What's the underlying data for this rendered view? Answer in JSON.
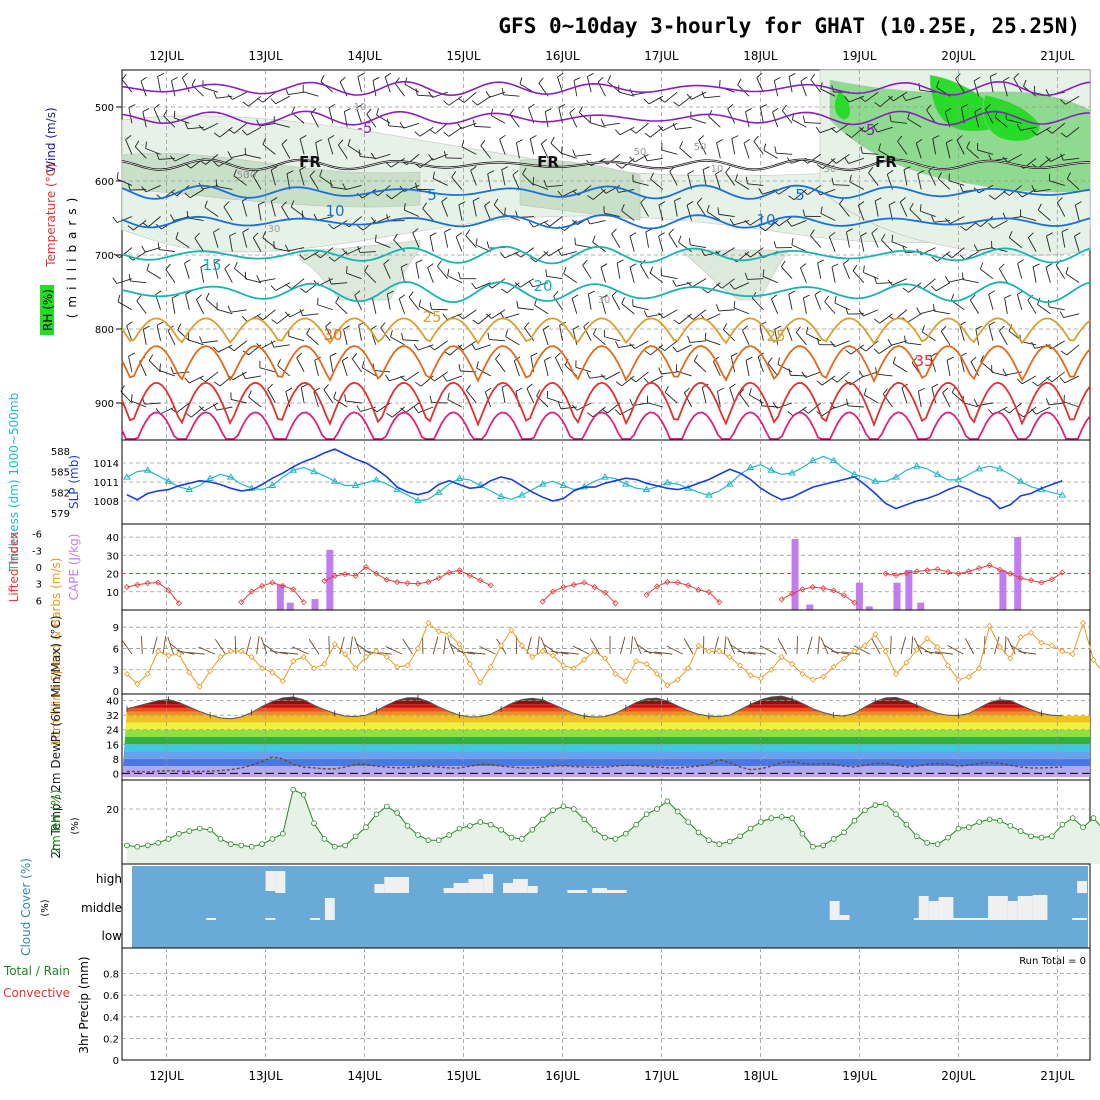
{
  "title": "GFS 0~10day 3-hourly for GHAT (10.25E, 25.25N)",
  "time_axis": {
    "day_labels": [
      "12JUL",
      "13JUL",
      "14JUL",
      "15JUL",
      "16JUL",
      "17JUL",
      "18JUL",
      "19JUL",
      "20JUL",
      "21JUL"
    ]
  },
  "colors": {
    "temp_neg": "#8a1fbf",
    "temp_freezing": "#111111",
    "temp_cool": "#1a6fd8",
    "temp_mild": "#19b3b3",
    "temp_warm": "#d7a030",
    "temp_hot": "#e06a1a",
    "temp_very_hot": "#e03030",
    "rh_green": "#22dd22",
    "slp_line": "#1a3fd8",
    "thickness_line": "#22b8c8",
    "lifted_index": "#e04040",
    "cape_bar": "#c07cf0",
    "wind_speed": "#e89a20",
    "rh2m": "#228822",
    "cloud_bg": "#6aaad8",
    "cloud_fill": "#f0f0f0"
  },
  "chart_data": [
    {
      "panel": "upper_air_cross_section",
      "type": "heatmap",
      "ylabel": "(millibars)",
      "side_labels": [
        "Wind (m/s)",
        "Temperature (°C)",
        "RH (%)"
      ],
      "y_ticks": [
        "500",
        "600",
        "700",
        "800",
        "900"
      ],
      "ylim": [
        950,
        450
      ],
      "isotherm_labels": [
        {
          "text": "-5",
          "group": "temp_neg"
        },
        {
          "text": "-5",
          "group": "temp_neg"
        },
        {
          "text": "FR",
          "group": "temp_freezing"
        },
        {
          "text": "FR",
          "group": "temp_freezing"
        },
        {
          "text": "FR",
          "group": "temp_freezing"
        },
        {
          "text": "5",
          "group": "temp_cool"
        },
        {
          "text": "5",
          "group": "temp_cool"
        },
        {
          "text": "10",
          "group": "temp_cool"
        },
        {
          "text": "10",
          "group": "temp_cool"
        },
        {
          "text": "15",
          "group": "temp_mild"
        },
        {
          "text": "20",
          "group": "temp_mild"
        },
        {
          "text": "25",
          "group": "temp_warm"
        },
        {
          "text": "25",
          "group": "temp_warm"
        },
        {
          "text": "30",
          "group": "temp_hot"
        },
        {
          "text": "35",
          "group": "temp_very_hot"
        }
      ],
      "rh_contour_labels": [
        "10",
        "30",
        "30",
        "30",
        "50",
        "50",
        "10",
        "30",
        "50"
      ]
    },
    {
      "panel": "slp_thickness",
      "type": "line",
      "ylabel_left": "Thickness (dm) 1000~500mb",
      "ylabel_right": "SLP (mb)",
      "thickness_ticks": [
        "588",
        "585",
        "582",
        "579"
      ],
      "slp_ticks": [
        "1014",
        "1011",
        "1008"
      ],
      "slp_ylim": [
        1005,
        1017
      ],
      "series": [
        {
          "name": "SLP (mb)",
          "color_key": "slp_line",
          "values": [
            1009.0,
            1008.2,
            1009.2,
            1009.6,
            1009.8,
            1010.4,
            1010.8,
            1011.2,
            1011.0,
            1010.6,
            1010.0,
            1009.6,
            1009.8,
            1010.6,
            1011.6,
            1012.4,
            1013.4,
            1014.2,
            1014.8,
            1015.6,
            1016.2,
            1015.4,
            1014.6,
            1014.0,
            1013.0,
            1011.8,
            1010.2,
            1009.4,
            1009.0,
            1009.4,
            1010.6,
            1011.2,
            1010.6,
            1010.0,
            1010.2,
            1011.2,
            1011.8,
            1011.4,
            1010.4,
            1009.4,
            1008.6,
            1008.0,
            1008.4,
            1009.6,
            1010.2,
            1010.2,
            1010.8,
            1011.2,
            1011.6,
            1011.4,
            1010.8,
            1010.4,
            1010.0,
            1009.8,
            1010.2,
            1010.8,
            1011.4,
            1012.2,
            1013.0,
            1012.4,
            1011.4,
            1010.0,
            1009.0,
            1008.2,
            1008.6,
            1009.4,
            1010.2,
            1010.6,
            1011.0,
            1011.4,
            1011.8,
            1010.6,
            1009.2,
            1007.6,
            1006.8,
            1007.4,
            1008.0,
            1008.4,
            1009.0,
            1009.8,
            1010.4,
            1009.8,
            1009.0,
            1008.4,
            1006.8,
            1007.4,
            1008.8,
            1009.2,
            1010.0,
            1010.6,
            1011.2
          ]
        },
        {
          "name": "Thickness (dm)",
          "color_key": "thickness_line",
          "values": [
            584.2,
            585.0,
            585.2,
            584.4,
            583.6,
            582.8,
            582.4,
            583.0,
            584.0,
            584.6,
            584.2,
            583.2,
            582.6,
            582.4,
            583.0,
            584.2,
            585.2,
            585.6,
            585.0,
            584.4,
            583.6,
            583.0,
            583.0,
            583.4,
            583.8,
            583.2,
            582.4,
            581.6,
            580.8,
            581.0,
            582.0,
            583.2,
            584.0,
            583.8,
            583.0,
            582.2,
            581.4,
            581.0,
            581.6,
            582.4,
            583.2,
            583.6,
            583.0,
            582.4,
            582.8,
            583.6,
            584.2,
            584.0,
            583.2,
            582.6,
            582.4,
            582.8,
            583.4,
            583.2,
            582.6,
            582.0,
            581.6,
            582.2,
            583.2,
            584.6,
            585.6,
            586.0,
            585.2,
            584.6,
            584.8,
            585.6,
            586.6,
            587.2,
            586.6,
            585.4,
            584.6,
            584.2,
            583.6,
            583.6,
            584.2,
            585.2,
            585.8,
            585.4,
            584.6,
            583.8,
            583.8,
            584.6,
            585.4,
            585.8,
            585.4,
            584.6,
            583.6,
            582.8,
            582.4,
            582.0,
            581.6
          ]
        }
      ]
    },
    {
      "panel": "lifted_index_cape",
      "type": "bar",
      "ylabel_left": "Lifted Index",
      "ylabel_right": "CAPE (J/kg)",
      "li_ticks": [
        "-6",
        "-3",
        "0",
        "3",
        "6"
      ],
      "cape_ticks": [
        "40",
        "30",
        "20",
        "10"
      ],
      "cape_ylim": [
        0,
        45
      ],
      "series": [
        {
          "name": "Lifted Index",
          "color_key": "lifted_index",
          "values": [
            3.6,
            3.2,
            2.9,
            2.8,
            4.2,
            6.5,
            null,
            null,
            null,
            null,
            null,
            6.3,
            4.4,
            3.4,
            2.8,
            3.4,
            4.0,
            6.3,
            null,
            2.5,
            1.6,
            1.3,
            1.6,
            0.0,
            1.2,
            2.3,
            2.7,
            2.9,
            3.0,
            2.7,
            2.0,
            1.0,
            0.6,
            1.5,
            2.4,
            3.3,
            null,
            null,
            null,
            null,
            6.2,
            4.4,
            3.6,
            3.2,
            2.8,
            3.6,
            4.6,
            6.5,
            null,
            null,
            5.0,
            3.5,
            2.7,
            2.8,
            3.3,
            4.1,
            4.5,
            6.3,
            null,
            null,
            null,
            null,
            null,
            5.8,
            4.8,
            4.0,
            3.6,
            3.8,
            4.2,
            5.1,
            6.4,
            null,
            null,
            1.2,
            1.5,
            1.1,
            0.8,
            0.6,
            0.4,
            0.9,
            1.2,
            0.8,
            0.2,
            -0.3,
            0.5,
            1.2,
            2.0,
            2.4,
            2.8,
            2.2,
            1.0
          ]
        },
        {
          "name": "CAPE (J/kg)",
          "color_key": "cape_bar",
          "bars": [
            {
              "day": 13.15,
              "value": 14
            },
            {
              "day": 13.25,
              "value": 4
            },
            {
              "day": 13.5,
              "value": 6
            },
            {
              "day": 13.65,
              "value": 33
            },
            {
              "day": 18.35,
              "value": 39
            },
            {
              "day": 18.5,
              "value": 3
            },
            {
              "day": 19.0,
              "value": 15
            },
            {
              "day": 19.1,
              "value": 2
            },
            {
              "day": 19.38,
              "value": 15
            },
            {
              "day": 19.5,
              "value": 22
            },
            {
              "day": 19.62,
              "value": 4
            },
            {
              "day": 20.45,
              "value": 22
            },
            {
              "day": 20.6,
              "value": 40
            }
          ]
        }
      ]
    },
    {
      "panel": "wind10m",
      "type": "line",
      "ylabel": "10m Wind Speed & Barbs (m/s)",
      "y_ticks": [
        "9",
        "6",
        "3",
        "0"
      ],
      "ylim": [
        0,
        11
      ],
      "series": [
        {
          "name": "Speed",
          "color_key": "wind_speed",
          "values": [
            2.4,
            1.0,
            2.4,
            5.6,
            5.0,
            5.2,
            2.6,
            0.6,
            2.8,
            4.8,
            5.6,
            5.6,
            4.8,
            3.2,
            2.6,
            1.4,
            4.2,
            4.8,
            3.2,
            3.8,
            6.6,
            5.2,
            3.2,
            4.8,
            5.6,
            4.8,
            3.4,
            3.6,
            6.0,
            9.6,
            8.4,
            8.0,
            6.6,
            3.8,
            1.2,
            3.4,
            6.4,
            8.6,
            6.4,
            4.8,
            5.6,
            5.0,
            3.6,
            3.2,
            4.4,
            5.6,
            4.6,
            2.4,
            1.4,
            4.2,
            3.8,
            2.4,
            0.8,
            1.6,
            3.2,
            6.4,
            5.6,
            5.6,
            4.8,
            3.6,
            2.2,
            1.8,
            3.0,
            4.8,
            3.8,
            2.4,
            1.6,
            2.0,
            3.4,
            4.6,
            5.6,
            6.4,
            8.0,
            5.6,
            2.4,
            4.0,
            5.8,
            7.4,
            6.2,
            3.6,
            1.6,
            2.0,
            3.2,
            9.2,
            6.2,
            4.6,
            7.6,
            8.2,
            6.8,
            6.4,
            5.6,
            5.2,
            9.6,
            4.4,
            2.4,
            2.0,
            4.0
          ]
        }
      ]
    },
    {
      "panel": "temp2m",
      "type": "area",
      "ylabel": "2m Temp / 2m DewPt (6hr Min/Max) (°C)",
      "y_ticks": [
        "40",
        "32",
        "24",
        "16",
        "8",
        "0"
      ],
      "ylim": [
        -2,
        42
      ],
      "series": [
        {
          "name": "2m Temp",
          "values": [
            35.5,
            37.0,
            38.5,
            40.0,
            40.6,
            39.0,
            36.5,
            34.0,
            32.0,
            30.5,
            30.0,
            31.0,
            33.5,
            36.8,
            39.5,
            41.5,
            42.0,
            40.5,
            37.5,
            35.0,
            33.0,
            31.5,
            31.2,
            32.0,
            34.5,
            37.5,
            40.2,
            41.6,
            41.5,
            39.5,
            36.5,
            34.0,
            32.0,
            31.0,
            31.2,
            32.5,
            35.5,
            38.5,
            40.6,
            41.3,
            40.5,
            38.0,
            35.5,
            33.0,
            31.5,
            31.0,
            31.2,
            33.0,
            36.0,
            39.0,
            41.0,
            41.4,
            39.8,
            37.0,
            34.5,
            32.5,
            31.5,
            31.2,
            32.0,
            35.0,
            38.0,
            40.5,
            42.0,
            42.5,
            41.0,
            38.5,
            35.5,
            33.5,
            32.0,
            31.5,
            33.0,
            36.5,
            39.5,
            41.5,
            41.8,
            40.0,
            37.5,
            35.0,
            33.0,
            32.0,
            31.8,
            33.0,
            36.0,
            39.0,
            40.5,
            40.0,
            37.5,
            35.0,
            33.0,
            32.0,
            31.6
          ]
        },
        {
          "name": "2m DewPt",
          "values": [
            1.0,
            1.0,
            0.8,
            1.2,
            1.5,
            1.2,
            1.0,
            1.0,
            1.2,
            1.5,
            2.0,
            3.0,
            4.5,
            6.5,
            9.0,
            8.0,
            5.0,
            3.5,
            3.0,
            2.5,
            2.5,
            3.5,
            5.0,
            5.0,
            4.0,
            3.5,
            3.0,
            3.2,
            3.8,
            4.0,
            3.5,
            3.0,
            3.0,
            4.0,
            5.0,
            4.8,
            4.0,
            3.5,
            3.0,
            3.0,
            3.5,
            4.0,
            4.2,
            3.8,
            3.5,
            3.2,
            3.5,
            4.0,
            4.5,
            4.2,
            4.0,
            3.5,
            3.0,
            3.0,
            3.5,
            4.0,
            5.0,
            7.5,
            6.0,
            3.5,
            2.0,
            2.5,
            4.0,
            6.0,
            6.5,
            5.5,
            5.0,
            5.5,
            5.0,
            4.0,
            3.5,
            4.5,
            5.5,
            5.5,
            4.5,
            3.5,
            4.0,
            5.0,
            5.5,
            5.0,
            4.0,
            4.5,
            5.5,
            6.0,
            5.5,
            4.5,
            3.5,
            3.0,
            3.0,
            3.2,
            3.5
          ]
        }
      ]
    },
    {
      "panel": "rh2m",
      "type": "area",
      "ylabel": "2m RH (%)",
      "y_ticks": [
        "20"
      ],
      "ylim": [
        0,
        30
      ],
      "series": [
        {
          "name": "2m RH",
          "color_key": "rh2m",
          "values": [
            6.0,
            5.5,
            6.0,
            7.0,
            8.5,
            10.5,
            11.5,
            12.5,
            12.0,
            8.5,
            6.5,
            6.0,
            5.5,
            6.5,
            8.5,
            10.5,
            27.5,
            25.5,
            14.5,
            8.5,
            5.5,
            6.0,
            9.5,
            13.0,
            18.0,
            21.0,
            18.5,
            13.5,
            10.0,
            8.0,
            8.0,
            10.0,
            12.5,
            13.5,
            15.0,
            14.0,
            12.0,
            9.0,
            8.5,
            12.0,
            16.0,
            19.5,
            21.0,
            20.0,
            16.0,
            12.0,
            9.0,
            8.5,
            10.5,
            14.0,
            18.0,
            20.0,
            23.0,
            19.0,
            15.0,
            11.0,
            8.0,
            6.5,
            7.5,
            9.5,
            12.5,
            15.0,
            16.5,
            17.0,
            16.5,
            10.5,
            5.5,
            6.0,
            8.5,
            11.0,
            15.5,
            19.5,
            21.5,
            22.0,
            18.0,
            14.0,
            9.5,
            7.0,
            6.5,
            9.0,
            12.5,
            13.0,
            15.0,
            16.0,
            15.5,
            13.5,
            11.5,
            9.5,
            9.0,
            9.5,
            14.0,
            16.5,
            13.0,
            16.5,
            12.0
          ]
        }
      ]
    },
    {
      "panel": "cloud_cover",
      "type": "bar",
      "ylabel": "Cloud Cover (%)",
      "level_labels": [
        "high",
        "middle",
        "low"
      ]
    },
    {
      "panel": "precip",
      "type": "bar",
      "ylabel_left_1": "Total / Rain",
      "ylabel_left_2": "Convective",
      "ylabel_left_3": "3hr Precip (mm)",
      "y_ticks": [
        "0.8",
        "0.6",
        "0.4",
        "0.2",
        "0"
      ],
      "ylim": [
        0,
        1.0
      ],
      "run_total": "Run Total = 0"
    }
  ]
}
